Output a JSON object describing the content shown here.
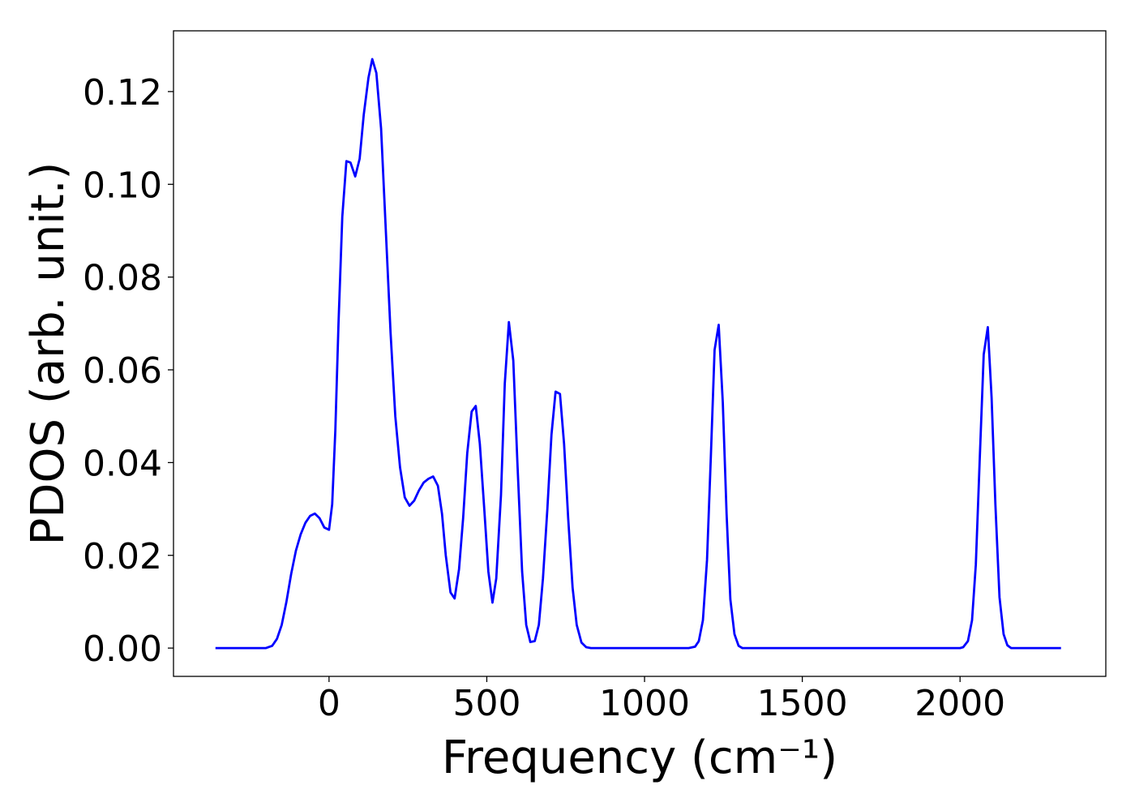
{
  "chart_data": {
    "type": "line",
    "xlabel": "Frequency (cm⁻¹)",
    "ylabel": "PDOS (arb. unit.)",
    "color": "#0000ff",
    "x": [
      -360,
      -200,
      -180,
      -165,
      -150,
      -135,
      -120,
      -105,
      -90,
      -75,
      -60,
      -45,
      -30,
      -15,
      0,
      10,
      20,
      30,
      42,
      55,
      68,
      83,
      97,
      110,
      125,
      137,
      150,
      165,
      180,
      195,
      210,
      225,
      240,
      255,
      270,
      285,
      300,
      315,
      330,
      345,
      358,
      370,
      385,
      398,
      412,
      425,
      438,
      452,
      465,
      478,
      492,
      505,
      518,
      530,
      545,
      557,
      570,
      584,
      597,
      612,
      625,
      638,
      652,
      665,
      678,
      692,
      705,
      718,
      732,
      745,
      758,
      772,
      785,
      800,
      815,
      830,
      1140,
      1160,
      1172,
      1185,
      1198,
      1210,
      1222,
      1235,
      1248,
      1260,
      1272,
      1285,
      1298,
      1310,
      2000,
      2010,
      2025,
      2038,
      2050,
      2062,
      2075,
      2088,
      2100,
      2112,
      2125,
      2138,
      2150,
      2162,
      2320
    ],
    "values": [
      0,
      0,
      0.0005,
      0.002,
      0.005,
      0.01,
      0.016,
      0.021,
      0.0245,
      0.027,
      0.0285,
      0.029,
      0.028,
      0.026,
      0.0255,
      0.031,
      0.047,
      0.07,
      0.093,
      0.105,
      0.1047,
      0.1017,
      0.1055,
      0.115,
      0.123,
      0.127,
      0.124,
      0.112,
      0.09,
      0.068,
      0.05,
      0.039,
      0.0325,
      0.0307,
      0.0318,
      0.034,
      0.0357,
      0.0365,
      0.037,
      0.035,
      0.029,
      0.02,
      0.012,
      0.0107,
      0.017,
      0.028,
      0.042,
      0.051,
      0.0522,
      0.044,
      0.03,
      0.0165,
      0.0098,
      0.015,
      0.033,
      0.057,
      0.0703,
      0.062,
      0.04,
      0.0165,
      0.005,
      0.0013,
      0.0015,
      0.005,
      0.015,
      0.03,
      0.046,
      0.0553,
      0.0548,
      0.044,
      0.028,
      0.013,
      0.005,
      0.0012,
      0.0002,
      0,
      0,
      0.0003,
      0.0015,
      0.006,
      0.019,
      0.041,
      0.0643,
      0.0697,
      0.053,
      0.029,
      0.0105,
      0.003,
      0.0005,
      0,
      0,
      0.0002,
      0.0015,
      0.006,
      0.018,
      0.04,
      0.0633,
      0.0692,
      0.054,
      0.031,
      0.011,
      0.003,
      0.0006,
      0,
      0
    ],
    "xlim": [
      -493,
      2462
    ],
    "ylim": [
      -0.0061,
      0.1331
    ],
    "xticks": [
      0,
      500,
      1000,
      1500,
      2000
    ],
    "yticks": [
      {
        "value": 0,
        "label": "0.00"
      },
      {
        "value": 0.02,
        "label": "0.02"
      },
      {
        "value": 0.04,
        "label": "0.04"
      },
      {
        "value": 0.06,
        "label": "0.06"
      },
      {
        "value": 0.08,
        "label": "0.08"
      },
      {
        "value": 0.1,
        "label": "0.10"
      },
      {
        "value": 0.12,
        "label": "0.12"
      }
    ],
    "grid": false
  }
}
